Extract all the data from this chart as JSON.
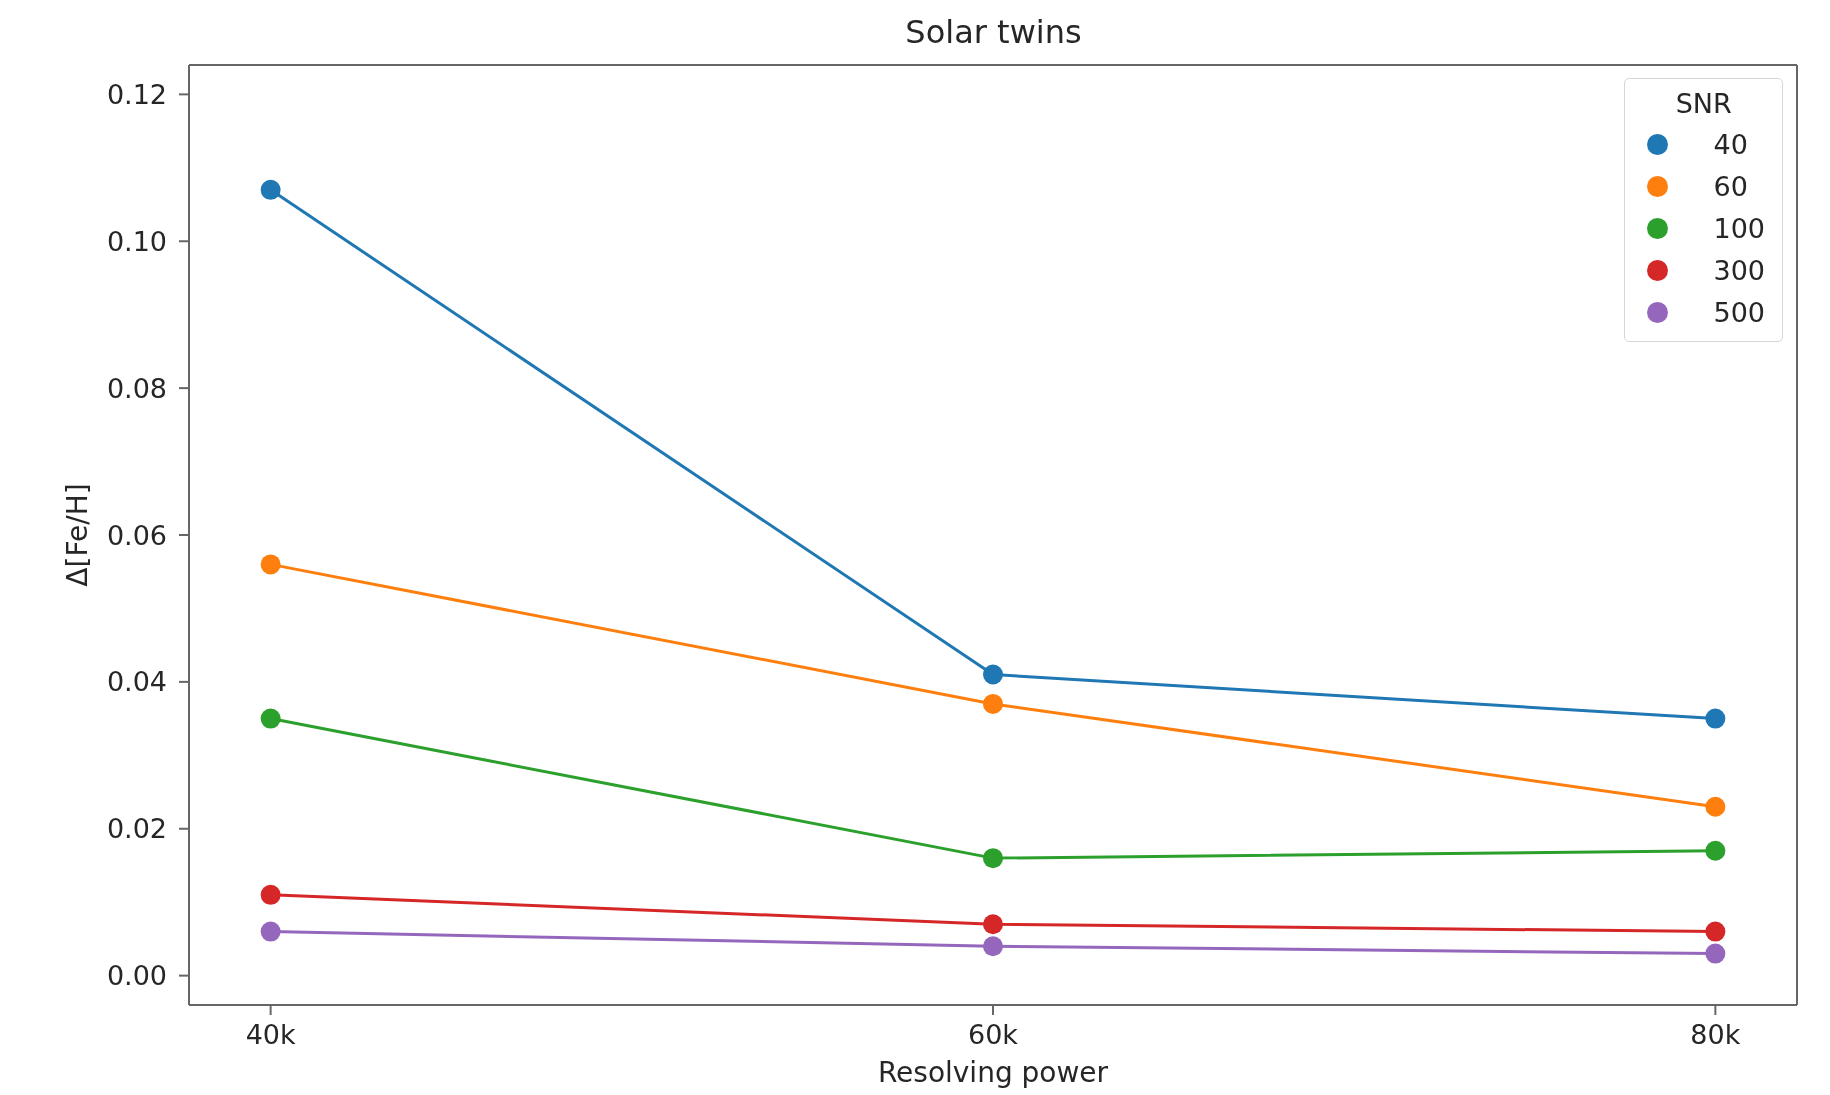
{
  "chart_data": {
    "type": "line",
    "title": "Solar twins",
    "xlabel": "Resolving power",
    "ylabel": "Δ[Fe/H]",
    "legend_title": "SNR",
    "categories": [
      "40k",
      "60k",
      "80k"
    ],
    "series": [
      {
        "name": "40",
        "color": "#1f77b4",
        "values": [
          0.107,
          0.041,
          0.035
        ]
      },
      {
        "name": "60",
        "color": "#ff7f0e",
        "values": [
          0.056,
          0.037,
          0.023
        ]
      },
      {
        "name": "100",
        "color": "#2ca02c",
        "values": [
          0.035,
          0.016,
          0.017
        ]
      },
      {
        "name": "300",
        "color": "#d62728",
        "values": [
          0.011,
          0.007,
          0.006
        ]
      },
      {
        "name": "500",
        "color": "#9467bd",
        "values": [
          0.006,
          0.004,
          0.003
        ]
      }
    ],
    "ylim": [
      -0.004,
      0.124
    ],
    "yticks": [
      {
        "value": 0,
        "label": "0.00"
      },
      {
        "value": 0.02,
        "label": "0.02"
      },
      {
        "value": 0.04,
        "label": "0.04"
      },
      {
        "value": 0.06,
        "label": "0.06"
      },
      {
        "value": 0.08,
        "label": "0.08"
      },
      {
        "value": 0.1,
        "label": "0.10"
      },
      {
        "value": 0.12,
        "label": "0.12"
      }
    ],
    "legend": "top right",
    "marker": "circle",
    "line_style": "solid"
  }
}
